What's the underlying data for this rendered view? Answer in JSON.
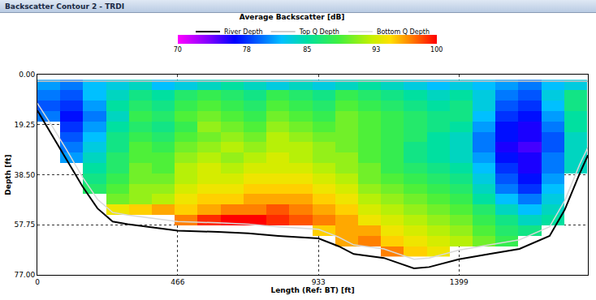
{
  "window": {
    "title": "Backscatter Contour 2 - TRDI"
  },
  "chart_data": {
    "type": "heatmap",
    "title": "Average Backscatter [dB]",
    "x_label": "Length (Ref: BT) [ft]",
    "y_label": "Depth [ft]",
    "xlim": [
      0,
      1827
    ],
    "xticks": [
      0,
      466,
      933,
      1399
    ],
    "ylim": [
      77,
      0
    ],
    "yticks": [
      {
        "value": 0,
        "label": "0.00"
      },
      {
        "value": 19.25,
        "label": "19.25"
      },
      {
        "value": 38.5,
        "label": "38.50"
      },
      {
        "value": 57.75,
        "label": "57.75"
      },
      {
        "value": 77,
        "label": "77.00"
      }
    ],
    "grid": true,
    "legend": "top",
    "cells": {
      "x": [
        38,
        114,
        190,
        266,
        342,
        418,
        494,
        570,
        646,
        722,
        798,
        874,
        950,
        1026,
        1102,
        1178,
        1254,
        1330,
        1406,
        1482,
        1558,
        1634,
        1710,
        1786
      ],
      "y": [
        4,
        8,
        12,
        16,
        20,
        24,
        28,
        32,
        36,
        40,
        44,
        48,
        52,
        56,
        60,
        64,
        68
      ],
      "z": [
        [
          81,
          80,
          82,
          83,
          84,
          82,
          83,
          84,
          85,
          84,
          83,
          84,
          83,
          84,
          85,
          84,
          83,
          82,
          83,
          82,
          81,
          80,
          82,
          83
        ],
        [
          80,
          79,
          82,
          84,
          86,
          85,
          87,
          88,
          87,
          86,
          88,
          87,
          86,
          88,
          87,
          86,
          85,
          84,
          85,
          83,
          80,
          79,
          83,
          86
        ],
        [
          79,
          78,
          81,
          85,
          87,
          86,
          88,
          89,
          88,
          87,
          89,
          88,
          87,
          89,
          88,
          87,
          86,
          85,
          86,
          83,
          79,
          78,
          82,
          86
        ],
        [
          80,
          77,
          80,
          84,
          88,
          87,
          89,
          90,
          89,
          88,
          90,
          89,
          88,
          90,
          89,
          88,
          87,
          86,
          86,
          82,
          78,
          77,
          81,
          85
        ],
        [
          null,
          78,
          81,
          85,
          87,
          86,
          88,
          91,
          90,
          89,
          91,
          90,
          89,
          90,
          89,
          88,
          87,
          86,
          85,
          81,
          77,
          76,
          80,
          85
        ],
        [
          null,
          79,
          82,
          86,
          88,
          87,
          89,
          90,
          91,
          90,
          92,
          91,
          90,
          90,
          89,
          88,
          87,
          85,
          84,
          80,
          77,
          76,
          79,
          84
        ],
        [
          null,
          80,
          83,
          86,
          89,
          88,
          90,
          91,
          92,
          91,
          92,
          92,
          91,
          90,
          89,
          88,
          86,
          85,
          84,
          80,
          76,
          75,
          79,
          84
        ],
        [
          null,
          81,
          84,
          87,
          89,
          89,
          91,
          92,
          91,
          92,
          93,
          92,
          91,
          91,
          89,
          88,
          86,
          85,
          84,
          81,
          77,
          76,
          80,
          84
        ],
        [
          null,
          null,
          85,
          87,
          90,
          89,
          92,
          93,
          92,
          93,
          93,
          93,
          92,
          91,
          90,
          88,
          87,
          86,
          85,
          82,
          78,
          76,
          80,
          84
        ],
        [
          null,
          null,
          86,
          88,
          90,
          90,
          92,
          93,
          93,
          94,
          94,
          94,
          93,
          92,
          90,
          89,
          88,
          87,
          86,
          83,
          79,
          77,
          81,
          null
        ],
        [
          null,
          null,
          87,
          89,
          91,
          91,
          93,
          94,
          94,
          95,
          95,
          95,
          94,
          93,
          91,
          90,
          89,
          88,
          87,
          84,
          80,
          78,
          82,
          null
        ],
        [
          null,
          null,
          null,
          90,
          91,
          92,
          94,
          95,
          95,
          96,
          96,
          96,
          95,
          94,
          92,
          91,
          90,
          89,
          88,
          85,
          82,
          80,
          83,
          null
        ],
        [
          null,
          null,
          null,
          94,
          95,
          96,
          95,
          96,
          97,
          97,
          98,
          97,
          96,
          95,
          93,
          92,
          91,
          90,
          89,
          87,
          84,
          82,
          84,
          null
        ],
        [
          null,
          null,
          null,
          null,
          null,
          null,
          97,
          99,
          100,
          100,
          99,
          98,
          97,
          96,
          94,
          93,
          92,
          91,
          90,
          88,
          86,
          84,
          85,
          null
        ],
        [
          null,
          null,
          null,
          null,
          null,
          null,
          null,
          null,
          null,
          null,
          null,
          null,
          95,
          96,
          96,
          94,
          93,
          92,
          91,
          89,
          87,
          86,
          null,
          null
        ],
        [
          null,
          null,
          null,
          null,
          null,
          null,
          null,
          null,
          null,
          null,
          null,
          null,
          null,
          96,
          97,
          95,
          94,
          93,
          92,
          90,
          88,
          null,
          null,
          null
        ],
        [
          null,
          null,
          null,
          null,
          null,
          null,
          null,
          null,
          null,
          null,
          null,
          null,
          null,
          null,
          null,
          97,
          95,
          94,
          null,
          null,
          null,
          null,
          null,
          null
        ]
      ]
    },
    "colorbar": {
      "range": [
        70,
        100
      ],
      "ticks": [
        70,
        78,
        85,
        93,
        100
      ]
    },
    "x": [
      0,
      50,
      100,
      150,
      200,
      250,
      300,
      400,
      466,
      600,
      700,
      800,
      933,
      1000,
      1050,
      1150,
      1250,
      1300,
      1399,
      1500,
      1600,
      1700,
      1750,
      1800,
      1827
    ],
    "series": [
      {
        "name": "River Depth",
        "type": "line",
        "color": "#000000",
        "values": [
          13.8,
          23.5,
          33,
          43,
          51.5,
          56.5,
          57.5,
          59,
          60,
          60.5,
          61,
          62,
          63,
          66,
          69,
          70.5,
          74.5,
          74,
          71,
          69,
          67,
          62,
          52,
          38,
          31
        ]
      },
      {
        "name": "Top Q Depth",
        "type": "line",
        "color": "#bfbfbf",
        "values": [
          2.6,
          2.6,
          2.6,
          2.6,
          2.6,
          2.6,
          2.6,
          2.6,
          2.6,
          2.6,
          2.6,
          2.6,
          2.6,
          2.6,
          2.6,
          2.6,
          2.6,
          2.6,
          2.6,
          2.6,
          2.6,
          2.6,
          2.6,
          2.6,
          2.6
        ]
      },
      {
        "name": "Bottom Q Depth",
        "type": "line",
        "color": "#d9d9d9",
        "values": [
          11,
          20,
          29.5,
          39.5,
          48,
          53,
          54,
          55.5,
          56.5,
          57,
          57.5,
          58.5,
          59.5,
          62.5,
          65.5,
          67,
          71,
          70.5,
          67.5,
          65.5,
          63.5,
          58.5,
          48.5,
          34.5,
          28
        ]
      }
    ]
  }
}
